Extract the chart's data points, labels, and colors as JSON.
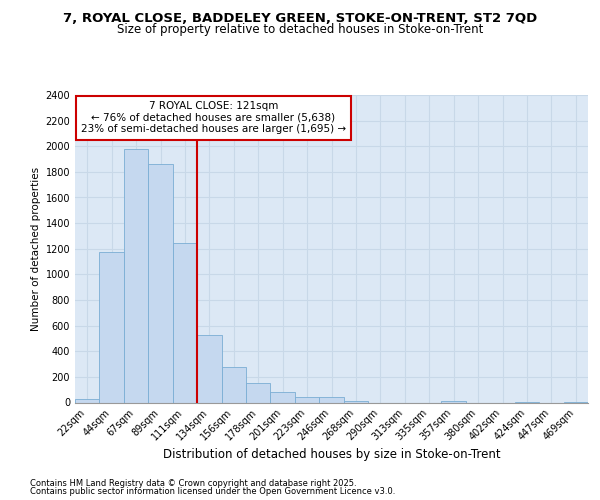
{
  "title1": "7, ROYAL CLOSE, BADDELEY GREEN, STOKE-ON-TRENT, ST2 7QD",
  "title2": "Size of property relative to detached houses in Stoke-on-Trent",
  "xlabel": "Distribution of detached houses by size in Stoke-on-Trent",
  "ylabel": "Number of detached properties",
  "categories": [
    "22sqm",
    "44sqm",
    "67sqm",
    "89sqm",
    "111sqm",
    "134sqm",
    "156sqm",
    "178sqm",
    "201sqm",
    "223sqm",
    "246sqm",
    "268sqm",
    "290sqm",
    "313sqm",
    "335sqm",
    "357sqm",
    "380sqm",
    "402sqm",
    "424sqm",
    "447sqm",
    "469sqm"
  ],
  "values": [
    30,
    1175,
    1975,
    1860,
    1245,
    525,
    275,
    155,
    85,
    40,
    40,
    15,
    0,
    0,
    0,
    10,
    0,
    0,
    5,
    0,
    5
  ],
  "bar_color": "#c5d8ef",
  "bar_edge_color": "#7aadd4",
  "grid_color": "#c8d8e8",
  "bg_color": "#dce8f5",
  "annotation_box_edge": "#cc0000",
  "property_line_x": 4.5,
  "annotation_text": "7 ROYAL CLOSE: 121sqm\n← 76% of detached houses are smaller (5,638)\n23% of semi-detached houses are larger (1,695) →",
  "footnote1": "Contains HM Land Registry data © Crown copyright and database right 2025.",
  "footnote2": "Contains public sector information licensed under the Open Government Licence v3.0.",
  "ylim": [
    0,
    2400
  ],
  "yticks": [
    0,
    200,
    400,
    600,
    800,
    1000,
    1200,
    1400,
    1600,
    1800,
    2000,
    2200,
    2400
  ],
  "title1_fontsize": 9.5,
  "title2_fontsize": 8.5,
  "xlabel_fontsize": 8.5,
  "ylabel_fontsize": 7.5,
  "tick_fontsize": 7.0,
  "annot_fontsize": 7.5,
  "footnote_fontsize": 6.0
}
